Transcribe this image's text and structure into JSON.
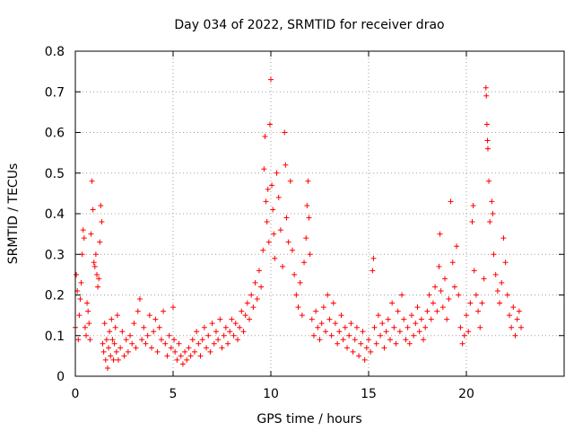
{
  "chart_data": {
    "type": "scatter",
    "title": "Day 034 of 2022, SRMTID for receiver drao",
    "xlabel": "GPS time / hours",
    "ylabel": "SRMTID / TECUs",
    "xlim": [
      0,
      25
    ],
    "ylim": [
      0,
      0.8
    ],
    "xticks": [
      0,
      5,
      10,
      15,
      20
    ],
    "yticks": [
      0,
      0.1,
      0.2,
      0.3,
      0.4,
      0.5,
      0.6,
      0.7,
      0.8
    ],
    "xtick_labels": [
      "0",
      "5",
      "10",
      "15",
      "20"
    ],
    "ytick_labels": [
      "0",
      "0.1",
      "0.2",
      "0.3",
      "0.4",
      "0.5",
      "0.6",
      "0.7",
      "0.8"
    ],
    "grid": true,
    "marker": "plus",
    "series": [
      {
        "name": "SRMTID",
        "color": "#ff0000",
        "points": [
          [
            0.0,
            0.12
          ],
          [
            0.05,
            0.25
          ],
          [
            0.1,
            0.21
          ],
          [
            0.15,
            0.09
          ],
          [
            0.2,
            0.15
          ],
          [
            0.25,
            0.19
          ],
          [
            0.3,
            0.23
          ],
          [
            0.35,
            0.3
          ],
          [
            0.4,
            0.36
          ],
          [
            0.45,
            0.34
          ],
          [
            0.5,
            0.12
          ],
          [
            0.55,
            0.1
          ],
          [
            0.6,
            0.18
          ],
          [
            0.65,
            0.16
          ],
          [
            0.7,
            0.13
          ],
          [
            0.75,
            0.09
          ],
          [
            0.8,
            0.35
          ],
          [
            0.85,
            0.48
          ],
          [
            0.9,
            0.41
          ],
          [
            0.95,
            0.28
          ],
          [
            1.0,
            0.27
          ],
          [
            1.05,
            0.3
          ],
          [
            1.1,
            0.25
          ],
          [
            1.15,
            0.22
          ],
          [
            1.2,
            0.24
          ],
          [
            1.25,
            0.33
          ],
          [
            1.3,
            0.42
          ],
          [
            1.35,
            0.38
          ],
          [
            1.4,
            0.08
          ],
          [
            1.45,
            0.06
          ],
          [
            1.5,
            0.13
          ],
          [
            1.55,
            0.04
          ],
          [
            1.6,
            0.09
          ],
          [
            1.65,
            0.02
          ],
          [
            1.7,
            0.07
          ],
          [
            1.75,
            0.11
          ],
          [
            1.8,
            0.05
          ],
          [
            1.85,
            0.14
          ],
          [
            1.9,
            0.09
          ],
          [
            1.95,
            0.04
          ],
          [
            2.0,
            0.08
          ],
          [
            2.05,
            0.12
          ],
          [
            2.1,
            0.06
          ],
          [
            2.15,
            0.15
          ],
          [
            2.2,
            0.04
          ],
          [
            2.3,
            0.07
          ],
          [
            2.4,
            0.11
          ],
          [
            2.5,
            0.05
          ],
          [
            2.6,
            0.09
          ],
          [
            2.7,
            0.06
          ],
          [
            2.8,
            0.1
          ],
          [
            2.9,
            0.08
          ],
          [
            3.0,
            0.13
          ],
          [
            3.1,
            0.07
          ],
          [
            3.2,
            0.16
          ],
          [
            3.3,
            0.19
          ],
          [
            3.4,
            0.09
          ],
          [
            3.5,
            0.12
          ],
          [
            3.6,
            0.08
          ],
          [
            3.7,
            0.1
          ],
          [
            3.8,
            0.15
          ],
          [
            3.9,
            0.07
          ],
          [
            4.0,
            0.11
          ],
          [
            4.1,
            0.14
          ],
          [
            4.2,
            0.06
          ],
          [
            4.3,
            0.12
          ],
          [
            4.4,
            0.09
          ],
          [
            4.5,
            0.16
          ],
          [
            4.6,
            0.08
          ],
          [
            4.7,
            0.05
          ],
          [
            4.8,
            0.1
          ],
          [
            4.9,
            0.07
          ],
          [
            5.0,
            0.17
          ],
          [
            5.05,
            0.09
          ],
          [
            5.1,
            0.06
          ],
          [
            5.2,
            0.04
          ],
          [
            5.3,
            0.08
          ],
          [
            5.4,
            0.05
          ],
          [
            5.5,
            0.03
          ],
          [
            5.6,
            0.06
          ],
          [
            5.7,
            0.04
          ],
          [
            5.8,
            0.07
          ],
          [
            5.9,
            0.05
          ],
          [
            6.0,
            0.09
          ],
          [
            6.1,
            0.06
          ],
          [
            6.2,
            0.11
          ],
          [
            6.3,
            0.08
          ],
          [
            6.4,
            0.05
          ],
          [
            6.5,
            0.09
          ],
          [
            6.6,
            0.12
          ],
          [
            6.7,
            0.07
          ],
          [
            6.8,
            0.1
          ],
          [
            6.9,
            0.06
          ],
          [
            7.0,
            0.13
          ],
          [
            7.1,
            0.08
          ],
          [
            7.2,
            0.11
          ],
          [
            7.3,
            0.09
          ],
          [
            7.4,
            0.14
          ],
          [
            7.5,
            0.07
          ],
          [
            7.6,
            0.1
          ],
          [
            7.7,
            0.12
          ],
          [
            7.8,
            0.08
          ],
          [
            7.9,
            0.11
          ],
          [
            8.0,
            0.14
          ],
          [
            8.1,
            0.1
          ],
          [
            8.2,
            0.13
          ],
          [
            8.3,
            0.09
          ],
          [
            8.4,
            0.12
          ],
          [
            8.5,
            0.16
          ],
          [
            8.6,
            0.11
          ],
          [
            8.7,
            0.15
          ],
          [
            8.8,
            0.18
          ],
          [
            8.9,
            0.14
          ],
          [
            9.0,
            0.2
          ],
          [
            9.1,
            0.17
          ],
          [
            9.2,
            0.23
          ],
          [
            9.3,
            0.19
          ],
          [
            9.4,
            0.26
          ],
          [
            9.5,
            0.22
          ],
          [
            9.6,
            0.31
          ],
          [
            9.65,
            0.51
          ],
          [
            9.7,
            0.59
          ],
          [
            9.75,
            0.43
          ],
          [
            9.8,
            0.38
          ],
          [
            9.85,
            0.46
          ],
          [
            9.9,
            0.33
          ],
          [
            9.95,
            0.62
          ],
          [
            10.0,
            0.73
          ],
          [
            10.05,
            0.47
          ],
          [
            10.1,
            0.41
          ],
          [
            10.15,
            0.35
          ],
          [
            10.2,
            0.29
          ],
          [
            10.3,
            0.5
          ],
          [
            10.4,
            0.44
          ],
          [
            10.5,
            0.36
          ],
          [
            10.6,
            0.27
          ],
          [
            10.7,
            0.6
          ],
          [
            10.75,
            0.52
          ],
          [
            10.8,
            0.39
          ],
          [
            10.9,
            0.33
          ],
          [
            11.0,
            0.48
          ],
          [
            11.1,
            0.31
          ],
          [
            11.2,
            0.25
          ],
          [
            11.3,
            0.2
          ],
          [
            11.4,
            0.17
          ],
          [
            11.5,
            0.23
          ],
          [
            11.6,
            0.15
          ],
          [
            11.7,
            0.28
          ],
          [
            11.8,
            0.34
          ],
          [
            11.85,
            0.42
          ],
          [
            11.9,
            0.48
          ],
          [
            11.95,
            0.39
          ],
          [
            12.0,
            0.3
          ],
          [
            12.1,
            0.14
          ],
          [
            12.2,
            0.1
          ],
          [
            12.3,
            0.16
          ],
          [
            12.4,
            0.12
          ],
          [
            12.5,
            0.09
          ],
          [
            12.6,
            0.13
          ],
          [
            12.7,
            0.17
          ],
          [
            12.8,
            0.11
          ],
          [
            12.9,
            0.2
          ],
          [
            13.0,
            0.14
          ],
          [
            13.1,
            0.1
          ],
          [
            13.2,
            0.18
          ],
          [
            13.3,
            0.13
          ],
          [
            13.4,
            0.08
          ],
          [
            13.5,
            0.11
          ],
          [
            13.6,
            0.15
          ],
          [
            13.7,
            0.09
          ],
          [
            13.8,
            0.12
          ],
          [
            13.9,
            0.07
          ],
          [
            14.0,
            0.1
          ],
          [
            14.1,
            0.13
          ],
          [
            14.2,
            0.06
          ],
          [
            14.3,
            0.09
          ],
          [
            14.4,
            0.12
          ],
          [
            14.5,
            0.05
          ],
          [
            14.6,
            0.08
          ],
          [
            14.7,
            0.11
          ],
          [
            14.8,
            0.04
          ],
          [
            14.9,
            0.07
          ],
          [
            15.0,
            0.09
          ],
          [
            15.1,
            0.06
          ],
          [
            15.2,
            0.26
          ],
          [
            15.25,
            0.29
          ],
          [
            15.3,
            0.12
          ],
          [
            15.4,
            0.08
          ],
          [
            15.5,
            0.15
          ],
          [
            15.6,
            0.1
          ],
          [
            15.7,
            0.13
          ],
          [
            15.8,
            0.07
          ],
          [
            15.9,
            0.11
          ],
          [
            16.0,
            0.14
          ],
          [
            16.1,
            0.09
          ],
          [
            16.2,
            0.18
          ],
          [
            16.3,
            0.12
          ],
          [
            16.4,
            0.08
          ],
          [
            16.5,
            0.16
          ],
          [
            16.6,
            0.11
          ],
          [
            16.7,
            0.2
          ],
          [
            16.8,
            0.14
          ],
          [
            16.9,
            0.09
          ],
          [
            17.0,
            0.12
          ],
          [
            17.1,
            0.08
          ],
          [
            17.2,
            0.15
          ],
          [
            17.3,
            0.1
          ],
          [
            17.4,
            0.13
          ],
          [
            17.5,
            0.17
          ],
          [
            17.6,
            0.11
          ],
          [
            17.7,
            0.14
          ],
          [
            17.8,
            0.09
          ],
          [
            17.9,
            0.12
          ],
          [
            18.0,
            0.16
          ],
          [
            18.1,
            0.2
          ],
          [
            18.2,
            0.14
          ],
          [
            18.3,
            0.18
          ],
          [
            18.4,
            0.22
          ],
          [
            18.5,
            0.16
          ],
          [
            18.6,
            0.27
          ],
          [
            18.65,
            0.35
          ],
          [
            18.7,
            0.21
          ],
          [
            18.8,
            0.17
          ],
          [
            18.9,
            0.24
          ],
          [
            19.0,
            0.14
          ],
          [
            19.1,
            0.19
          ],
          [
            19.2,
            0.43
          ],
          [
            19.3,
            0.28
          ],
          [
            19.4,
            0.22
          ],
          [
            19.5,
            0.32
          ],
          [
            19.6,
            0.2
          ],
          [
            19.7,
            0.12
          ],
          [
            19.8,
            0.08
          ],
          [
            19.9,
            0.1
          ],
          [
            20.0,
            0.15
          ],
          [
            20.1,
            0.11
          ],
          [
            20.2,
            0.18
          ],
          [
            20.3,
            0.38
          ],
          [
            20.35,
            0.42
          ],
          [
            20.4,
            0.26
          ],
          [
            20.5,
            0.2
          ],
          [
            20.6,
            0.16
          ],
          [
            20.7,
            0.12
          ],
          [
            20.8,
            0.18
          ],
          [
            20.9,
            0.24
          ],
          [
            21.0,
            0.71
          ],
          [
            21.02,
            0.69
          ],
          [
            21.05,
            0.62
          ],
          [
            21.08,
            0.58
          ],
          [
            21.1,
            0.56
          ],
          [
            21.15,
            0.48
          ],
          [
            21.2,
            0.38
          ],
          [
            21.3,
            0.43
          ],
          [
            21.35,
            0.4
          ],
          [
            21.4,
            0.3
          ],
          [
            21.5,
            0.25
          ],
          [
            21.6,
            0.21
          ],
          [
            21.7,
            0.18
          ],
          [
            21.8,
            0.23
          ],
          [
            21.9,
            0.34
          ],
          [
            22.0,
            0.28
          ],
          [
            22.1,
            0.2
          ],
          [
            22.2,
            0.15
          ],
          [
            22.3,
            0.12
          ],
          [
            22.4,
            0.17
          ],
          [
            22.5,
            0.1
          ],
          [
            22.6,
            0.14
          ],
          [
            22.7,
            0.16
          ],
          [
            22.8,
            0.12
          ]
        ]
      }
    ]
  }
}
